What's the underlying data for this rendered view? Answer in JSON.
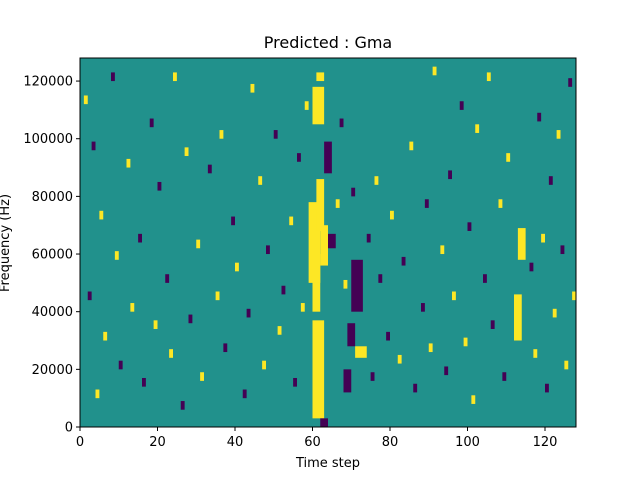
{
  "chart_data": {
    "type": "heatmap",
    "title": "Predicted : Gma",
    "xlabel": "Time step",
    "ylabel": "Frequency (Hz)",
    "xlim": [
      0,
      128
    ],
    "ylim": [
      0,
      128000
    ],
    "x_ticks": [
      0,
      20,
      40,
      60,
      80,
      100,
      120
    ],
    "y_ticks": [
      0,
      20000,
      40000,
      60000,
      80000,
      100000,
      120000
    ],
    "x_tick_labels": [
      "0",
      "20",
      "40",
      "60",
      "80",
      "100",
      "120"
    ],
    "y_tick_labels": [
      "0",
      "20000",
      "40000",
      "60000",
      "80000",
      "100000",
      "120000"
    ],
    "grid_shape": {
      "time_steps": 128,
      "frequency_bins": 128
    },
    "value_levels": {
      "low": 0,
      "mid": 1,
      "high": 2
    },
    "colors": {
      "low": "#440154",
      "mid": "#21918c",
      "high": "#fde725"
    },
    "background_level": "mid",
    "high_regions": [
      {
        "x0": 60,
        "x1": 63,
        "y0": 3000,
        "y1": 37000
      },
      {
        "x0": 60,
        "x1": 62,
        "y0": 40000,
        "y1": 60000
      },
      {
        "x0": 59,
        "x1": 62,
        "y0": 50000,
        "y1": 78000
      },
      {
        "x0": 61,
        "x1": 63,
        "y0": 68000,
        "y1": 86000
      },
      {
        "x0": 60,
        "x1": 63,
        "y0": 105000,
        "y1": 118000
      },
      {
        "x0": 61,
        "x1": 63,
        "y0": 120000,
        "y1": 123000
      },
      {
        "x0": 62,
        "x1": 64,
        "y0": 56000,
        "y1": 70000
      },
      {
        "x0": 71,
        "x1": 74,
        "y0": 24000,
        "y1": 28000
      },
      {
        "x0": 112,
        "x1": 114,
        "y0": 30000,
        "y1": 46000
      },
      {
        "x0": 113,
        "x1": 115,
        "y0": 58000,
        "y1": 69000
      }
    ],
    "low_regions": [
      {
        "x0": 63,
        "x1": 65,
        "y0": 88000,
        "y1": 99000
      },
      {
        "x0": 64,
        "x1": 66,
        "y0": 62000,
        "y1": 67000
      },
      {
        "x0": 70,
        "x1": 73,
        "y0": 40000,
        "y1": 58000
      },
      {
        "x0": 69,
        "x1": 71,
        "y0": 28000,
        "y1": 36000
      },
      {
        "x0": 68,
        "x1": 70,
        "y0": 12000,
        "y1": 20000
      },
      {
        "x0": 62,
        "x1": 64,
        "y0": 0,
        "y1": 3000
      }
    ],
    "scattered_cells": [
      {
        "x": 1,
        "y": 112000,
        "level": "high"
      },
      {
        "x": 2,
        "y": 44000,
        "level": "low"
      },
      {
        "x": 3,
        "y": 96000,
        "level": "low"
      },
      {
        "x": 4,
        "y": 10000,
        "level": "high"
      },
      {
        "x": 5,
        "y": 72000,
        "level": "high"
      },
      {
        "x": 6,
        "y": 30000,
        "level": "high"
      },
      {
        "x": 8,
        "y": 120000,
        "level": "low"
      },
      {
        "x": 9,
        "y": 58000,
        "level": "high"
      },
      {
        "x": 10,
        "y": 20000,
        "level": "low"
      },
      {
        "x": 12,
        "y": 90000,
        "level": "high"
      },
      {
        "x": 13,
        "y": 40000,
        "level": "high"
      },
      {
        "x": 15,
        "y": 64000,
        "level": "low"
      },
      {
        "x": 16,
        "y": 14000,
        "level": "low"
      },
      {
        "x": 18,
        "y": 104000,
        "level": "low"
      },
      {
        "x": 19,
        "y": 34000,
        "level": "high"
      },
      {
        "x": 20,
        "y": 82000,
        "level": "low"
      },
      {
        "x": 22,
        "y": 50000,
        "level": "low"
      },
      {
        "x": 23,
        "y": 24000,
        "level": "high"
      },
      {
        "x": 24,
        "y": 120000,
        "level": "high"
      },
      {
        "x": 26,
        "y": 6000,
        "level": "low"
      },
      {
        "x": 27,
        "y": 94000,
        "level": "high"
      },
      {
        "x": 28,
        "y": 36000,
        "level": "low"
      },
      {
        "x": 30,
        "y": 62000,
        "level": "high"
      },
      {
        "x": 31,
        "y": 16000,
        "level": "high"
      },
      {
        "x": 33,
        "y": 88000,
        "level": "low"
      },
      {
        "x": 35,
        "y": 44000,
        "level": "high"
      },
      {
        "x": 36,
        "y": 100000,
        "level": "high"
      },
      {
        "x": 37,
        "y": 26000,
        "level": "low"
      },
      {
        "x": 39,
        "y": 70000,
        "level": "low"
      },
      {
        "x": 40,
        "y": 54000,
        "level": "high"
      },
      {
        "x": 42,
        "y": 10000,
        "level": "low"
      },
      {
        "x": 43,
        "y": 38000,
        "level": "low"
      },
      {
        "x": 44,
        "y": 116000,
        "level": "high"
      },
      {
        "x": 46,
        "y": 84000,
        "level": "high"
      },
      {
        "x": 47,
        "y": 20000,
        "level": "high"
      },
      {
        "x": 48,
        "y": 60000,
        "level": "low"
      },
      {
        "x": 50,
        "y": 100000,
        "level": "low"
      },
      {
        "x": 51,
        "y": 32000,
        "level": "high"
      },
      {
        "x": 52,
        "y": 46000,
        "level": "low"
      },
      {
        "x": 54,
        "y": 70000,
        "level": "high"
      },
      {
        "x": 55,
        "y": 14000,
        "level": "low"
      },
      {
        "x": 56,
        "y": 92000,
        "level": "low"
      },
      {
        "x": 57,
        "y": 40000,
        "level": "high"
      },
      {
        "x": 58,
        "y": 110000,
        "level": "high"
      },
      {
        "x": 66,
        "y": 76000,
        "level": "high"
      },
      {
        "x": 67,
        "y": 104000,
        "level": "low"
      },
      {
        "x": 68,
        "y": 48000,
        "level": "high"
      },
      {
        "x": 70,
        "y": 80000,
        "level": "low"
      },
      {
        "x": 74,
        "y": 64000,
        "level": "low"
      },
      {
        "x": 75,
        "y": 16000,
        "level": "low"
      },
      {
        "x": 76,
        "y": 84000,
        "level": "high"
      },
      {
        "x": 77,
        "y": 50000,
        "level": "low"
      },
      {
        "x": 79,
        "y": 30000,
        "level": "low"
      },
      {
        "x": 80,
        "y": 72000,
        "level": "high"
      },
      {
        "x": 82,
        "y": 22000,
        "level": "high"
      },
      {
        "x": 83,
        "y": 56000,
        "level": "low"
      },
      {
        "x": 85,
        "y": 96000,
        "level": "high"
      },
      {
        "x": 86,
        "y": 12000,
        "level": "low"
      },
      {
        "x": 88,
        "y": 40000,
        "level": "low"
      },
      {
        "x": 89,
        "y": 76000,
        "level": "low"
      },
      {
        "x": 90,
        "y": 26000,
        "level": "high"
      },
      {
        "x": 91,
        "y": 122000,
        "level": "high"
      },
      {
        "x": 93,
        "y": 60000,
        "level": "high"
      },
      {
        "x": 94,
        "y": 18000,
        "level": "low"
      },
      {
        "x": 95,
        "y": 86000,
        "level": "low"
      },
      {
        "x": 96,
        "y": 44000,
        "level": "high"
      },
      {
        "x": 98,
        "y": 110000,
        "level": "low"
      },
      {
        "x": 99,
        "y": 28000,
        "level": "high"
      },
      {
        "x": 100,
        "y": 68000,
        "level": "low"
      },
      {
        "x": 101,
        "y": 8000,
        "level": "high"
      },
      {
        "x": 102,
        "y": 102000,
        "level": "high"
      },
      {
        "x": 104,
        "y": 50000,
        "level": "low"
      },
      {
        "x": 105,
        "y": 120000,
        "level": "high"
      },
      {
        "x": 106,
        "y": 34000,
        "level": "low"
      },
      {
        "x": 108,
        "y": 76000,
        "level": "high"
      },
      {
        "x": 109,
        "y": 16000,
        "level": "low"
      },
      {
        "x": 110,
        "y": 92000,
        "level": "high"
      },
      {
        "x": 116,
        "y": 54000,
        "level": "low"
      },
      {
        "x": 117,
        "y": 24000,
        "level": "high"
      },
      {
        "x": 118,
        "y": 106000,
        "level": "low"
      },
      {
        "x": 119,
        "y": 64000,
        "level": "high"
      },
      {
        "x": 120,
        "y": 12000,
        "level": "low"
      },
      {
        "x": 121,
        "y": 84000,
        "level": "low"
      },
      {
        "x": 122,
        "y": 38000,
        "level": "high"
      },
      {
        "x": 123,
        "y": 100000,
        "level": "high"
      },
      {
        "x": 124,
        "y": 60000,
        "level": "low"
      },
      {
        "x": 125,
        "y": 20000,
        "level": "high"
      },
      {
        "x": 126,
        "y": 118000,
        "level": "low"
      },
      {
        "x": 127,
        "y": 44000,
        "level": "high"
      }
    ]
  }
}
